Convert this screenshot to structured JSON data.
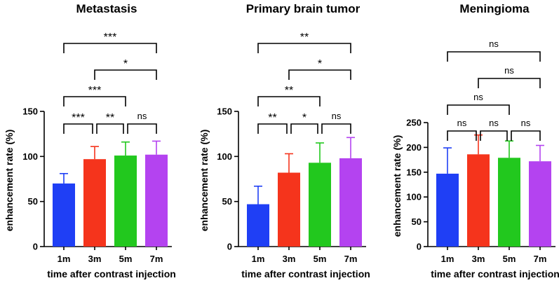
{
  "chart_data": [
    {
      "type": "bar",
      "title": "Metastasis",
      "xlabel": "time after contrast injection",
      "ylabel": "enhancement rate (%)",
      "ylim": [
        0,
        150
      ],
      "yticks": [
        0,
        50,
        100,
        150
      ],
      "categories": [
        "1m",
        "3m",
        "5m",
        "7m"
      ],
      "colors": [
        "#1f3ff5",
        "#f5341c",
        "#22c81e",
        "#b443f0"
      ],
      "values": [
        70,
        97,
        101,
        102
      ],
      "errors": [
        11,
        14,
        15,
        15
      ],
      "comparisons": [
        {
          "groups": [
            "1m",
            "3m"
          ],
          "label": "***"
        },
        {
          "groups": [
            "3m",
            "5m"
          ],
          "label": "**"
        },
        {
          "groups": [
            "5m",
            "7m"
          ],
          "label": "ns"
        },
        {
          "groups": [
            "1m",
            "5m"
          ],
          "label": "***"
        },
        {
          "groups": [
            "3m",
            "7m"
          ],
          "label": "*"
        },
        {
          "groups": [
            "1m",
            "7m"
          ],
          "label": "***"
        }
      ]
    },
    {
      "type": "bar",
      "title": "Primary brain tumor",
      "xlabel": "time after contrast injection",
      "ylabel": "enhancement rate (%)",
      "ylim": [
        0,
        150
      ],
      "yticks": [
        0,
        50,
        100,
        150
      ],
      "categories": [
        "1m",
        "3m",
        "5m",
        "7m"
      ],
      "colors": [
        "#1f3ff5",
        "#f5341c",
        "#22c81e",
        "#b443f0"
      ],
      "values": [
        47,
        82,
        93,
        98
      ],
      "errors": [
        20,
        21,
        22,
        23
      ],
      "comparisons": [
        {
          "groups": [
            "1m",
            "3m"
          ],
          "label": "**"
        },
        {
          "groups": [
            "3m",
            "5m"
          ],
          "label": "*"
        },
        {
          "groups": [
            "5m",
            "7m"
          ],
          "label": "ns"
        },
        {
          "groups": [
            "1m",
            "5m"
          ],
          "label": "**"
        },
        {
          "groups": [
            "3m",
            "7m"
          ],
          "label": "*"
        },
        {
          "groups": [
            "1m",
            "7m"
          ],
          "label": "**"
        }
      ]
    },
    {
      "type": "bar",
      "title": "Meningioma",
      "xlabel": "time after contrast injection",
      "ylabel": "enhancement rate (%)",
      "ylim": [
        0,
        250
      ],
      "yticks": [
        0,
        50,
        100,
        150,
        200,
        250
      ],
      "categories": [
        "1m",
        "3m",
        "5m",
        "7m"
      ],
      "colors": [
        "#1f3ff5",
        "#f5341c",
        "#22c81e",
        "#b443f0"
      ],
      "values": [
        147,
        186,
        179,
        172
      ],
      "errors": [
        52,
        39,
        34,
        32
      ],
      "comparisons": [
        {
          "groups": [
            "1m",
            "3m"
          ],
          "label": "ns"
        },
        {
          "groups": [
            "3m",
            "5m"
          ],
          "label": "ns"
        },
        {
          "groups": [
            "5m",
            "7m"
          ],
          "label": "ns"
        },
        {
          "groups": [
            "1m",
            "5m"
          ],
          "label": "ns"
        },
        {
          "groups": [
            "3m",
            "7m"
          ],
          "label": "ns"
        },
        {
          "groups": [
            "1m",
            "7m"
          ],
          "label": "ns"
        }
      ]
    }
  ]
}
